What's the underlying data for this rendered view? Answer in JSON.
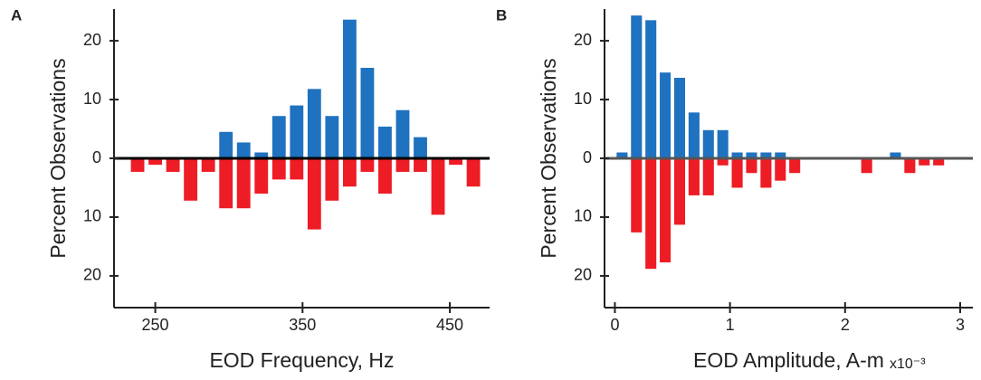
{
  "chart_data": [
    {
      "type": "histogram",
      "panel": "A",
      "x_label": "EOD Frequency, Hz",
      "y_label": "Percent Observations",
      "bins": [
        232,
        244,
        256,
        268,
        280,
        292,
        304,
        316,
        328,
        340,
        352,
        364,
        376,
        388,
        400,
        412,
        424,
        436,
        448,
        460,
        472
      ],
      "series": [
        {
          "color": "#1f72c0",
          "values": [
            0,
            0,
            0,
            0,
            0,
            4.5,
            2.7,
            1,
            7.2,
            9,
            11.8,
            7.2,
            23.6,
            15.4,
            5.4,
            8.2,
            3.6,
            0,
            0,
            0
          ]
        },
        {
          "color": "#ee1c25",
          "values": [
            -2.3,
            -1.1,
            -2.3,
            -7.2,
            -2.3,
            -8.5,
            -8.5,
            -6,
            -3.6,
            -3.6,
            -12.1,
            -7.2,
            -4.8,
            -2.3,
            -6,
            -2.3,
            -2.3,
            -9.6,
            -1.1,
            -4.8
          ]
        }
      ],
      "xlim": [
        222,
        477
      ],
      "xticks": [
        250,
        350,
        450
      ],
      "ylim": [
        -25.4,
        25.4
      ],
      "yticks": [
        {
          "value": -20,
          "label": "20"
        },
        {
          "value": -10,
          "label": "10"
        },
        0,
        10,
        20
      ],
      "zero_line_color": "#000000"
    },
    {
      "type": "histogram",
      "panel": "B",
      "x_label": "EOD Amplitude, A-m",
      "x_multiplier": "x10⁻³",
      "y_label": "Percent Observations",
      "bins": [
        0,
        0.125,
        0.25,
        0.375,
        0.5,
        0.625,
        0.75,
        0.875,
        1,
        1.125,
        1.25,
        1.375,
        1.5,
        1.625,
        1.75,
        1.875,
        2,
        2.125,
        2.25,
        2.375,
        2.5,
        2.625,
        2.75,
        2.875,
        3
      ],
      "series": [
        {
          "color": "#1f72c0",
          "values": [
            1,
            24.3,
            23.5,
            14.6,
            13.7,
            7.8,
            4.8,
            4.8,
            1,
            1,
            1,
            1,
            0,
            0,
            0,
            0,
            0,
            0,
            0,
            1,
            0,
            0,
            0,
            0
          ]
        },
        {
          "color": "#ee1c25",
          "values": [
            0,
            -12.6,
            -18.8,
            -17.7,
            -11.3,
            -6.3,
            -6.3,
            -1.2,
            -5,
            -2.5,
            -5,
            -3.8,
            -2.5,
            0,
            0,
            0,
            0,
            -2.5,
            0,
            0,
            -2.5,
            -1.2,
            -1.2,
            0
          ]
        }
      ],
      "xlim": [
        -0.09,
        3.11
      ],
      "xticks": [
        0,
        1,
        2,
        3
      ],
      "ylim": [
        -25.4,
        25.4
      ],
      "yticks": [
        {
          "value": -20,
          "label": "20"
        },
        {
          "value": -10,
          "label": "10"
        },
        0,
        10,
        20
      ],
      "zero_line_color": "#555555"
    }
  ]
}
